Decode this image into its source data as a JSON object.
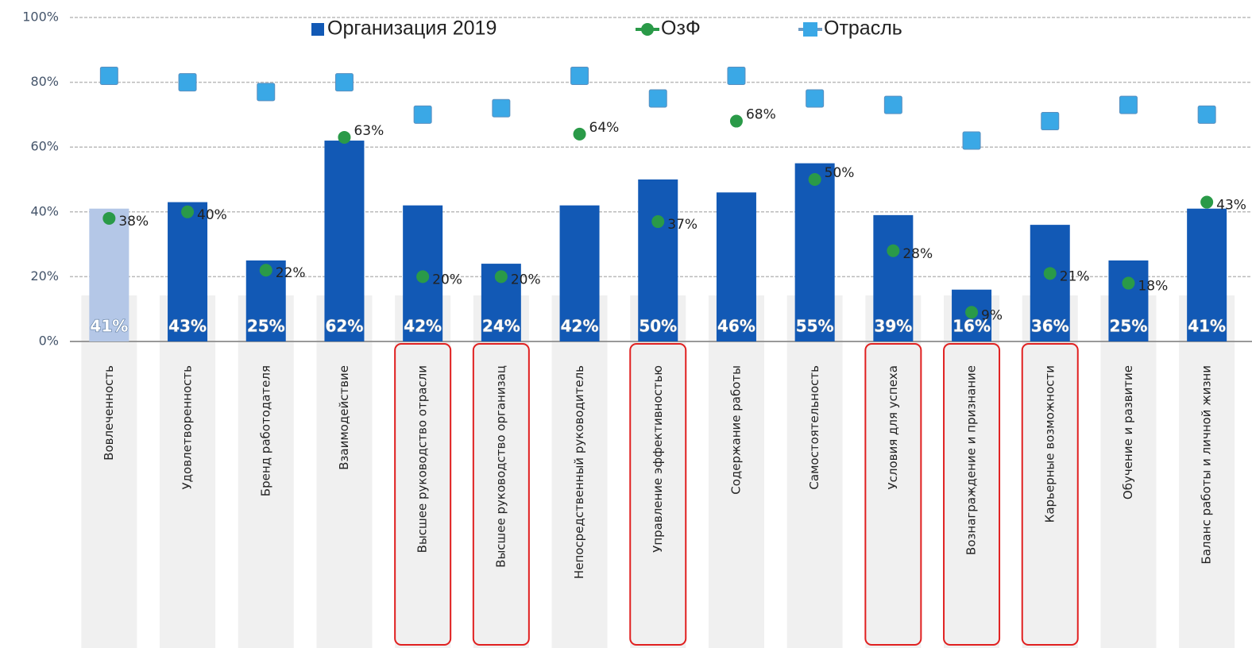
{
  "chart_data": {
    "type": "bar_line",
    "categories": [
      "Вовлеченность",
      "Удовлетворенность",
      "Бренд работодателя",
      "Взаимодействие",
      "Высшее руководство отрасли",
      "Высшее руководство организац",
      "Непосредственный руководитель",
      "Управление эффективностью",
      "Содержание работы",
      "Самостоятельность",
      "Условия для успеха",
      "Вознаграждение и признание",
      "Карьерные возможности",
      "Обучение и развитие",
      "Баланс работы и личной жизни"
    ],
    "series": [
      {
        "name": "Организация 2019",
        "kind": "bar",
        "color": "#1259b5",
        "colors": [
          "#b4c7e7",
          "#1259b5",
          "#1259b5",
          "#1259b5",
          "#1259b5",
          "#1259b5",
          "#1259b5",
          "#1259b5",
          "#1259b5",
          "#1259b5",
          "#1259b5",
          "#1259b5",
          "#1259b5",
          "#1259b5",
          "#1259b5"
        ],
        "values": [
          41,
          43,
          25,
          62,
          42,
          24,
          42,
          50,
          46,
          55,
          39,
          16,
          36,
          25,
          41
        ],
        "value_labels": [
          "41%",
          "43%",
          "25%",
          "62%",
          "42%",
          "24%",
          "42%",
          "50%",
          "46%",
          "55%",
          "39%",
          "16%",
          "36%",
          "25%",
          "41%"
        ]
      },
      {
        "name": "ОзФ",
        "kind": "line",
        "color": "#2a9a48",
        "marker": "circle",
        "values": [
          38,
          40,
          22,
          63,
          20,
          20,
          64,
          37,
          68,
          50,
          28,
          9,
          21,
          18,
          43
        ],
        "value_labels": [
          "38%",
          "40%",
          "22%",
          "63%",
          "20%",
          "20%",
          "64%",
          "37%",
          "68%",
          "50%",
          "28%",
          "9%",
          "21%",
          "18%",
          "43%"
        ]
      },
      {
        "name": "Отрасль",
        "kind": "line",
        "color": "#6e9cc4",
        "marker_color": "#3aa8e6",
        "marker": "square",
        "values": [
          82,
          80,
          77,
          80,
          70,
          72,
          82,
          75,
          82,
          75,
          73,
          62,
          68,
          73,
          70
        ]
      }
    ],
    "ylim": [
      0,
      100
    ],
    "yticks": [
      {
        "value": 0,
        "label": "0%"
      },
      {
        "value": 20,
        "label": "20%"
      },
      {
        "value": 40,
        "label": "40%"
      },
      {
        "value": 60,
        "label": "60%"
      },
      {
        "value": 80,
        "label": "80%"
      },
      {
        "value": 100,
        "label": "100%"
      }
    ],
    "grid": true,
    "legend": "top",
    "highlighted_categories": [
      4,
      5,
      7,
      10,
      11,
      12
    ],
    "highlight_color": "#e02020"
  }
}
